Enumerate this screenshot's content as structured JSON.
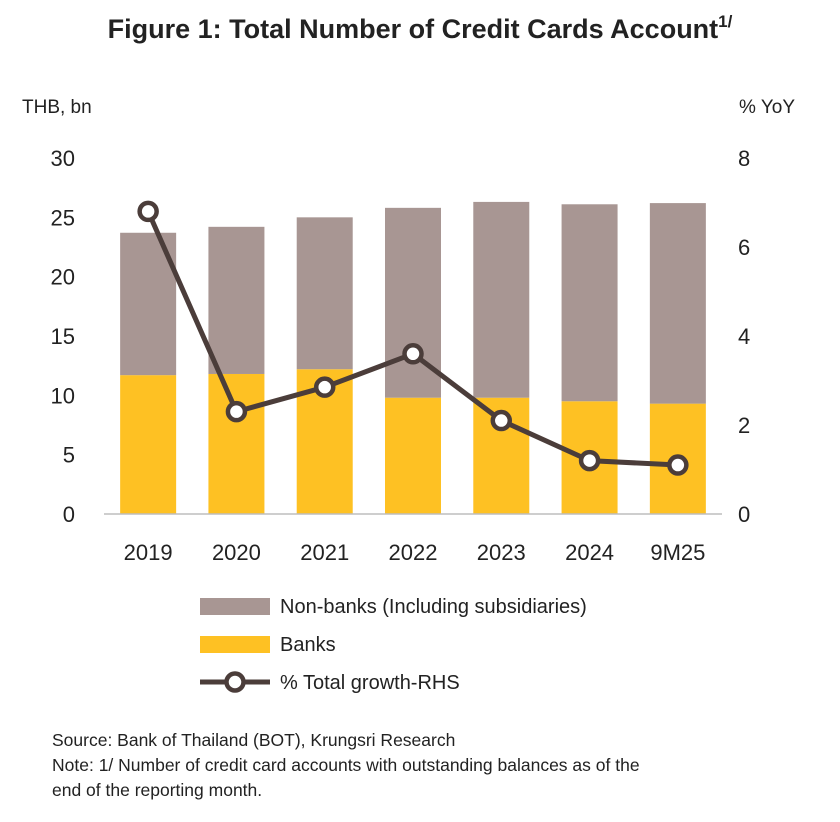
{
  "title": "Figure 1: Total Number of Credit Cards Account",
  "title_sup": "1/",
  "chart_data": {
    "type": "bar",
    "stacked": true,
    "categories": [
      "2019",
      "2020",
      "2021",
      "2022",
      "2023",
      "2024",
      "9M25"
    ],
    "series": [
      {
        "name": "Banks",
        "kind": "bar",
        "axis": "left",
        "color": "#FEC123",
        "values": [
          11.7,
          11.8,
          12.2,
          9.8,
          9.8,
          9.5,
          9.3
        ]
      },
      {
        "name": "Non-banks (Including subsidiaries)",
        "kind": "bar",
        "axis": "left",
        "color": "#A89693",
        "values": [
          12.0,
          12.4,
          12.8,
          16.0,
          16.5,
          16.6,
          16.9
        ]
      },
      {
        "name": "% Total growth-RHS",
        "kind": "line",
        "axis": "right",
        "color": "#4B3D3A",
        "values": [
          6.8,
          2.3,
          2.85,
          3.6,
          2.1,
          1.2,
          1.1
        ]
      }
    ],
    "ylabel_left": "THB, bn",
    "ylabel_right": "% YoY",
    "ylim_left": [
      0,
      30
    ],
    "ylim_right": [
      0,
      8
    ],
    "yticks_left": [
      "0",
      "5",
      "10",
      "15",
      "20",
      "25",
      "30"
    ],
    "yticks_right": [
      "0",
      "2",
      "4",
      "6",
      "8"
    ],
    "legend": [
      "Non-banks (Including subsidiaries)",
      "Banks",
      "% Total growth-RHS"
    ],
    "legend_position": "bottom",
    "grid": false
  },
  "source": "Source: Bank of Thailand (BOT), Krungsri Research",
  "note_line1": "Note: 1/ Number of credit card accounts with outstanding balances as of the",
  "note_line2": "end of the reporting month."
}
